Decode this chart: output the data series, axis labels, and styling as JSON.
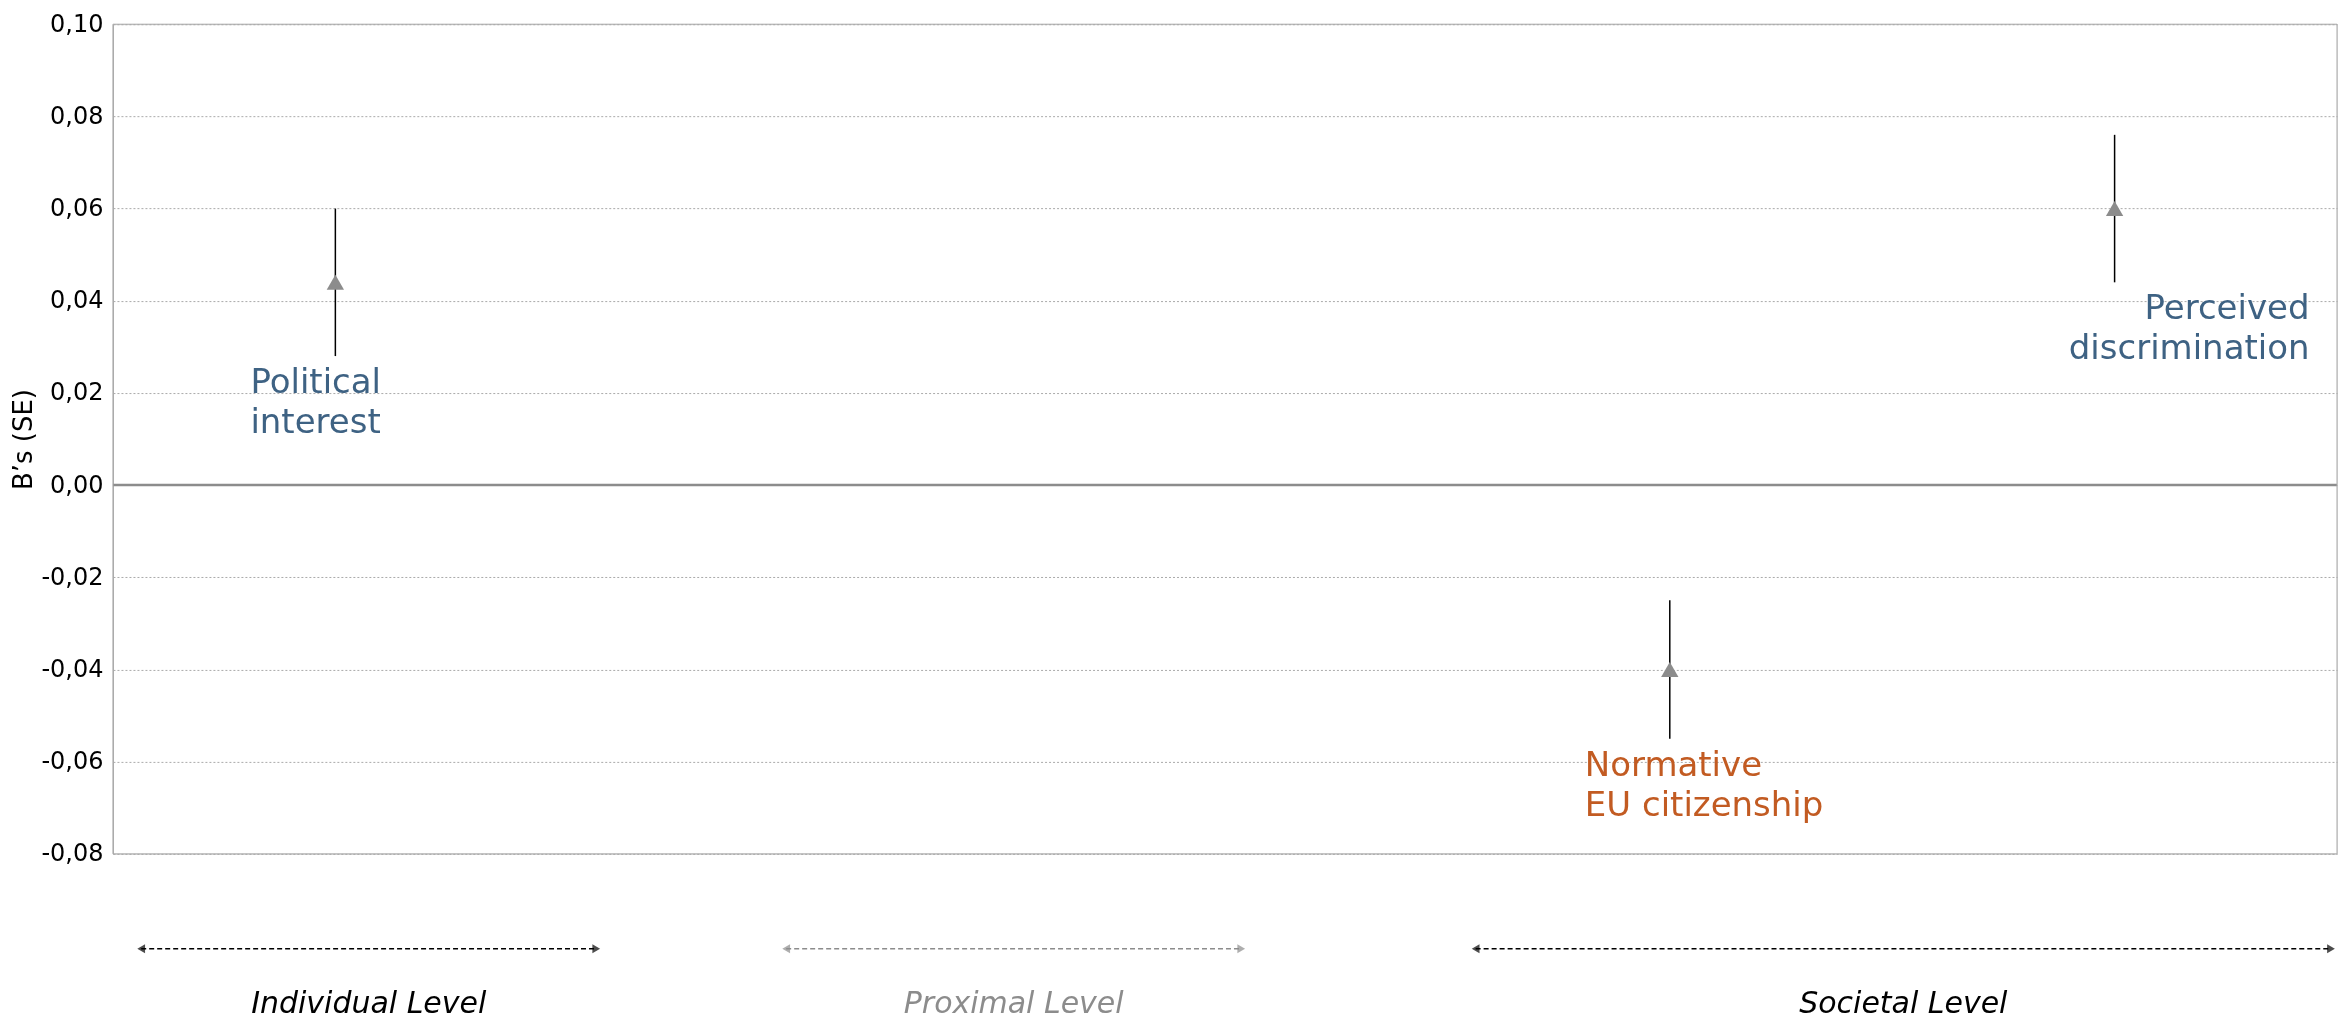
{
  "chart_data": {
    "type": "scatter",
    "ylabel": "B’s (SE)",
    "categories": [
      null,
      null,
      null,
      null,
      null,
      null,
      null,
      null,
      null,
      null,
      null
    ],
    "series": [
      {
        "name": "Political interest",
        "color": "#8c8c8c",
        "values": [
          null,
          0.044,
          null,
          null,
          null,
          null,
          null,
          null,
          null,
          null,
          null
        ],
        "errors": [
          null,
          [
            0.028,
            0.06
          ],
          null,
          null,
          null,
          null,
          null,
          null,
          null,
          null,
          null
        ]
      },
      {
        "name": "Normative EU citizenship",
        "color": "#8c8c8c",
        "values": [
          null,
          null,
          null,
          null,
          null,
          null,
          null,
          -0.04,
          null,
          null,
          null
        ],
        "errors": [
          null,
          null,
          null,
          null,
          null,
          null,
          null,
          [
            -0.055,
            -0.025
          ],
          null,
          null,
          null
        ]
      },
      {
        "name": "Perceived discrimination",
        "color": "#8c8c8c",
        "values": [
          null,
          null,
          null,
          null,
          null,
          null,
          null,
          null,
          null,
          0.06,
          null
        ],
        "errors": [
          null,
          null,
          null,
          null,
          null,
          null,
          null,
          null,
          null,
          [
            0.044,
            0.076
          ],
          null
        ]
      }
    ],
    "ylim": [
      -0.08,
      0.1
    ],
    "yticks": [
      {
        "value": -0.08,
        "label": "-0,08"
      },
      {
        "value": -0.06,
        "label": "-0,06"
      },
      {
        "value": -0.04,
        "label": "-0,04"
      },
      {
        "value": -0.02,
        "label": "-0,02"
      },
      {
        "value": 0,
        "label": "0,00"
      },
      {
        "value": 0.02,
        "label": "0,02"
      },
      {
        "value": 0.04,
        "label": "0,04"
      },
      {
        "value": 0.06,
        "label": "0,06"
      },
      {
        "value": 0.08,
        "label": "0,08"
      },
      {
        "value": 0.1,
        "label": "0,10"
      }
    ],
    "ref_lines": [
      {
        "axis": "y",
        "value": 0,
        "color": "#8c8c8c"
      }
    ],
    "grid": "y",
    "marker": "triangle",
    "tick_labels": "y",
    "annotations": [
      "Individual Level",
      "Proximal Level",
      "Societal Level"
    ]
  }
}
